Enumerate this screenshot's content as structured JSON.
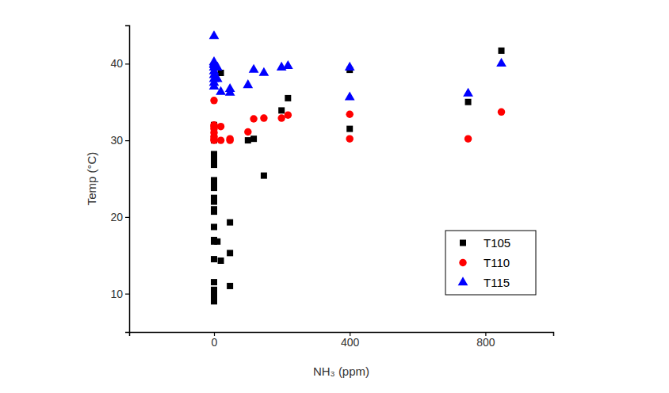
{
  "chart_data": {
    "type": "scatter",
    "x_label": "NH₃ (ppm)",
    "y_label": "Temp (°C)",
    "xlim": [
      -250,
      1000
    ],
    "ylim": [
      5,
      45
    ],
    "xticks": [
      0,
      400,
      800
    ],
    "yticks": [
      10,
      20,
      30,
      40
    ],
    "legend": "lower right",
    "series": [
      {
        "name": "T105",
        "color": "#000000",
        "marker": "square",
        "x": [
          0,
          0,
          0,
          0,
          0,
          0,
          0,
          0,
          0,
          0,
          0,
          0,
          0,
          0,
          0,
          0,
          0,
          0,
          0,
          0,
          0,
          0,
          0,
          10,
          20,
          20,
          47,
          47,
          47,
          100,
          117,
          147,
          199,
          218,
          400,
          400,
          749,
          847
        ],
        "values": [
          9,
          9.5,
          10,
          10.3,
          10.5,
          11.5,
          14.5,
          16.8,
          17,
          18.7,
          20.7,
          21,
          22,
          22.5,
          23.8,
          24.3,
          24.8,
          26.8,
          27.5,
          28.2,
          30,
          31,
          32,
          16.8,
          38.8,
          14.3,
          19.3,
          15.3,
          11,
          30,
          30.2,
          25.4,
          33.9,
          35.5,
          39.2,
          31.5,
          35,
          41.7
        ]
      },
      {
        "name": "T110",
        "color": "#ff0000",
        "marker": "circle",
        "x": [
          0,
          0,
          0,
          0,
          0,
          0,
          0,
          0,
          20,
          20,
          47,
          47,
          100,
          117,
          147,
          199,
          218,
          400,
          400,
          749,
          847
        ],
        "values": [
          35.2,
          32,
          31.8,
          31.5,
          31,
          30.5,
          30.2,
          30,
          31.8,
          30,
          30,
          30.2,
          31.1,
          32.8,
          32.9,
          32.9,
          33.3,
          33.4,
          30.2,
          30.2,
          33.7
        ]
      },
      {
        "name": "T115",
        "color": "#0000ff",
        "marker": "triangle",
        "x": [
          0,
          0,
          0,
          0,
          0,
          0,
          0,
          0,
          0,
          0,
          10,
          10,
          20,
          47,
          47,
          100,
          117,
          147,
          199,
          218,
          400,
          400,
          749,
          847
        ],
        "values": [
          43.6,
          40.2,
          40,
          39.8,
          39.5,
          39,
          38.5,
          38,
          37.5,
          37,
          39.5,
          38,
          36.3,
          36.7,
          36.2,
          37.2,
          39.2,
          38.8,
          39.5,
          39.7,
          39.5,
          35.6,
          36.1,
          40
        ]
      }
    ]
  }
}
